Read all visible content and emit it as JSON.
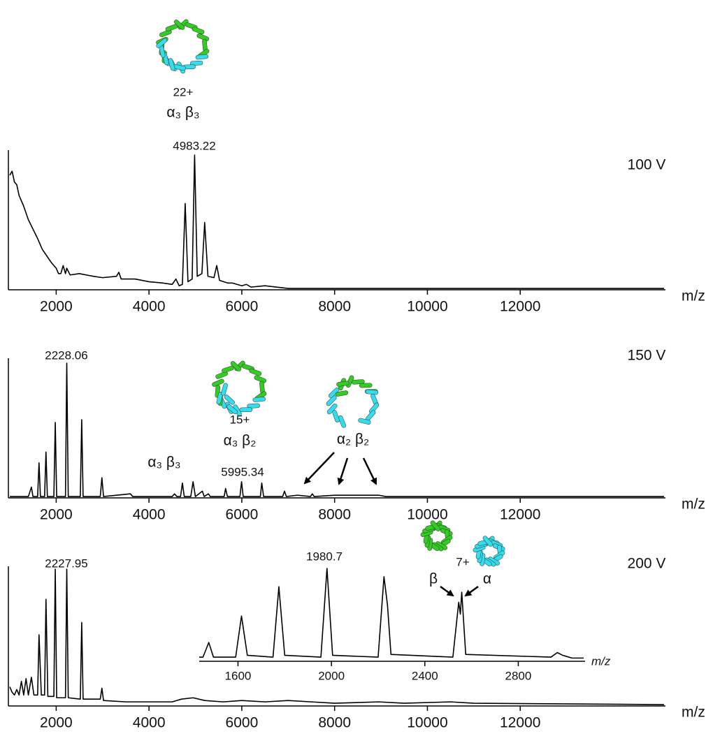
{
  "chart_data": [
    {
      "type": "line",
      "color": "#000000",
      "xlabel": "m/z",
      "xlim": [
        1000,
        15100
      ],
      "ylim": [
        0,
        100
      ],
      "xticks": [
        2000,
        4000,
        6000,
        8000,
        10000,
        12000
      ],
      "annotations": [
        "100 V",
        "4983.22",
        "22+",
        "α₃ β₃"
      ],
      "x": [
        1000,
        1050,
        1100,
        1150,
        1200,
        1300,
        1400,
        1500,
        1600,
        1700,
        1800,
        1900,
        2000,
        2050,
        2100,
        2150,
        2200,
        2228,
        2300,
        2500,
        2800,
        3000,
        3300,
        3350,
        3400,
        3700,
        4000,
        4300,
        4500,
        4580,
        4650,
        4720,
        4780,
        4840,
        4930,
        4983,
        5040,
        5140,
        5200,
        5270,
        5400,
        5460,
        5520,
        5700,
        5800,
        6000,
        6100,
        6200,
        6500,
        7000,
        8000,
        9000,
        10000,
        12000,
        15100
      ],
      "values": [
        85,
        88,
        80,
        78,
        70,
        62,
        52,
        45,
        38,
        30,
        25,
        20,
        16,
        12,
        12,
        18,
        12,
        16,
        11,
        12,
        10,
        9,
        10,
        13,
        8,
        8,
        6,
        5,
        4,
        8,
        3,
        4,
        64,
        6,
        8,
        100,
        10,
        12,
        50,
        10,
        9,
        18,
        7,
        5,
        5,
        3,
        4,
        2,
        3,
        1,
        1,
        1,
        1,
        1,
        1
      ]
    },
    {
      "type": "line",
      "color": "#000000",
      "xlabel": "m/z",
      "xlim": [
        1000,
        15100
      ],
      "ylim": [
        0,
        100
      ],
      "xticks": [
        2000,
        4000,
        6000,
        8000,
        10000,
        12000
      ],
      "annotations": [
        "150 V",
        "2228.06",
        "15+",
        "α₃ β₂",
        "α₂ β₂",
        "α₃ β₃",
        "5995.34"
      ],
      "x": [
        1000,
        1400,
        1466,
        1500,
        1600,
        1630,
        1660,
        1750,
        1780,
        1810,
        1950,
        1980,
        2010,
        2200,
        2228,
        2260,
        2520,
        2550,
        2580,
        2950,
        2985,
        3020,
        3600,
        3650,
        4500,
        4550,
        4600,
        4680,
        4720,
        4760,
        4900,
        4950,
        5000,
        5150,
        5190,
        5280,
        5320,
        5620,
        5650,
        5690,
        5960,
        5995,
        6030,
        6400,
        6430,
        6470,
        6880,
        6920,
        6960,
        7200,
        7480,
        7520,
        7560,
        8000,
        8150,
        8950,
        9100,
        15100
      ],
      "values": [
        1,
        1,
        8,
        1,
        1,
        26,
        1,
        1,
        34,
        1,
        1,
        56,
        1,
        1,
        100,
        1,
        1,
        58,
        1,
        1,
        15,
        1,
        3,
        1,
        1,
        3,
        1,
        1,
        11,
        1,
        1,
        12,
        1,
        5,
        1,
        3,
        1,
        1,
        7,
        1,
        1,
        12,
        1,
        1,
        11,
        1,
        1,
        5,
        1,
        2,
        1,
        3,
        1,
        2,
        2,
        2,
        1,
        1
      ]
    },
    {
      "type": "line",
      "color": "#000000",
      "xlabel": "m/z",
      "xlim": [
        1000,
        15100
      ],
      "ylim": [
        0,
        100
      ],
      "xticks": [
        2000,
        4000,
        6000,
        8000,
        10000,
        12000
      ],
      "annotations": [
        "200 V",
        "2227.95",
        "7+",
        "β",
        "α"
      ],
      "x": [
        1000,
        1050,
        1100,
        1150,
        1200,
        1250,
        1300,
        1350,
        1400,
        1466,
        1520,
        1600,
        1630,
        1680,
        1750,
        1780,
        1820,
        1950,
        1980,
        2010,
        2200,
        2228,
        2260,
        2520,
        2550,
        2580,
        2950,
        2985,
        3020,
        3500,
        4000,
        4500,
        4700,
        4950,
        5200,
        5600,
        6000,
        6500,
        7000,
        7500,
        8000,
        8950,
        9500,
        10500,
        11000,
        15100
      ],
      "values": [
        14,
        10,
        8,
        12,
        8,
        18,
        8,
        20,
        8,
        21,
        8,
        8,
        52,
        8,
        8,
        78,
        7,
        7,
        100,
        6,
        6,
        100,
        6,
        5,
        61,
        5,
        5,
        13,
        4,
        3,
        3,
        3,
        5,
        6,
        4,
        3,
        4,
        3,
        4,
        3,
        2,
        3,
        2,
        3,
        2,
        1
      ]
    },
    {
      "type": "line",
      "color": "#000000",
      "xlabel": "m/z",
      "xlim": [
        1434,
        3080
      ],
      "ylim": [
        0,
        100
      ],
      "xticks": [
        1600,
        2000,
        2400,
        2800
      ],
      "annotations": [
        "1980.7"
      ],
      "x": [
        1434,
        1450,
        1475,
        1495,
        1590,
        1615,
        1640,
        1750,
        1775,
        1800,
        1955,
        1981,
        2005,
        2200,
        2225,
        2240,
        2255,
        2520,
        2545,
        2552,
        2558,
        2575,
        2940,
        2967,
        2990,
        3030,
        3080
      ],
      "values": [
        3,
        3,
        19,
        3,
        3,
        48,
        5,
        3,
        80,
        5,
        3,
        100,
        5,
        3,
        91,
        60,
        6,
        3,
        63,
        50,
        74,
        6,
        3,
        8,
        5,
        2,
        2
      ]
    }
  ]
}
